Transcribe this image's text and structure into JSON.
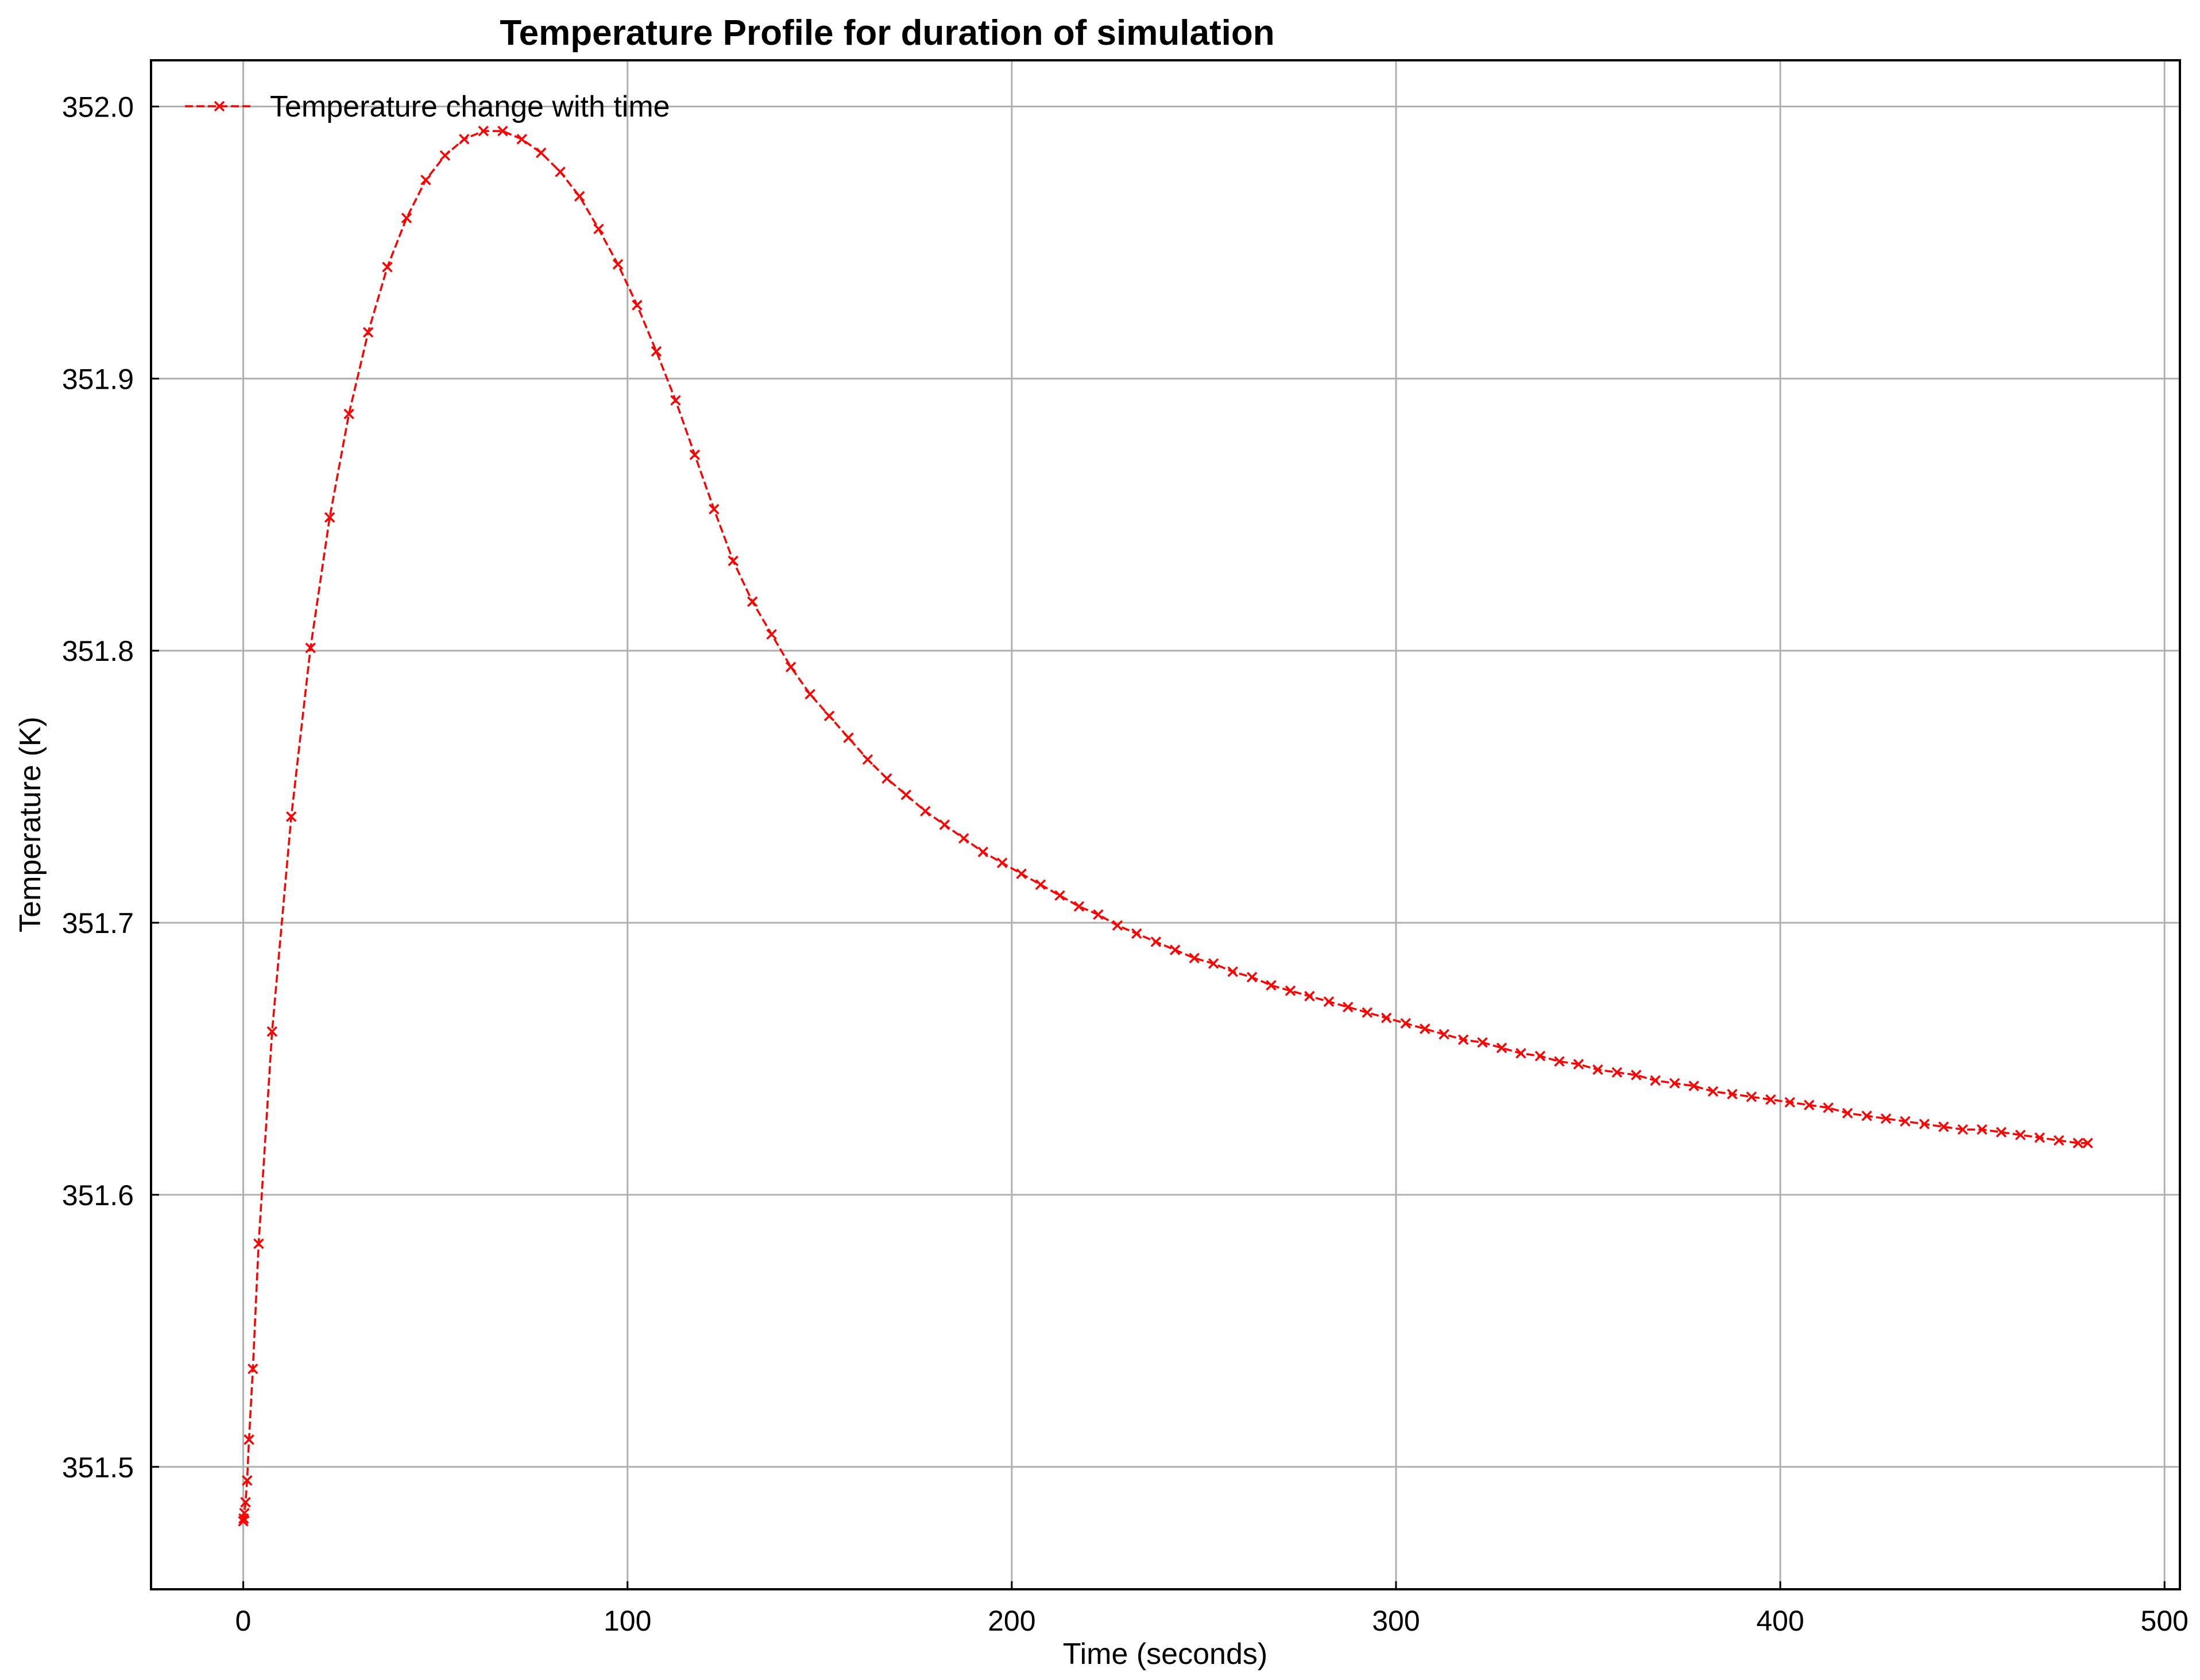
{
  "chart_data": {
    "type": "line",
    "title": "Temperature Profile for duration of simulation",
    "xlabel": "Time (seconds)",
    "ylabel": "Temperature (K)",
    "xlim": [
      -24,
      504
    ],
    "ylim": [
      351.455,
      352.017
    ],
    "xticks": [
      0,
      100,
      200,
      300,
      400,
      500
    ],
    "xtick_labels": [
      "0",
      "100",
      "200",
      "300",
      "400",
      "500"
    ],
    "yticks": [
      351.5,
      351.6,
      351.7,
      351.8,
      351.9,
      352.0
    ],
    "ytick_labels": [
      "351.5",
      "351.6",
      "351.7",
      "351.8",
      "351.9",
      "352.0"
    ],
    "grid": true,
    "legend_position": "upper-left",
    "series": [
      {
        "name": "Temperature change with time",
        "color": "#ff0000",
        "line_style": "dashed",
        "marker": "x",
        "x": [
          0,
          0.1,
          0.3,
          0.6,
          1,
          1.5,
          2.5,
          4,
          7.5,
          12.5,
          17.5,
          22.5,
          27.5,
          32.5,
          37.5,
          42.5,
          47.5,
          52.5,
          57.5,
          62.5,
          67.5,
          72.5,
          77.5,
          82.5,
          87.5,
          92.5,
          97.5,
          102.5,
          107.5,
          112.5,
          117.5,
          122.5,
          127.5,
          132.5,
          137.5,
          142.5,
          147.5,
          152.5,
          157.5,
          162.5,
          167.5,
          172.5,
          177.5,
          182.5,
          187.5,
          192.5,
          197.5,
          202.5,
          207.5,
          212.5,
          217.5,
          222.5,
          227.5,
          232.5,
          237.5,
          242.5,
          247.5,
          252.5,
          257.5,
          262.5,
          267.5,
          272.5,
          277.5,
          282.5,
          287.5,
          292.5,
          297.5,
          302.5,
          307.5,
          312.5,
          317.5,
          322.5,
          327.5,
          332.5,
          337.5,
          342.5,
          347.5,
          352.5,
          357.5,
          362.5,
          367.5,
          372.5,
          377.5,
          382.5,
          387.5,
          392.5,
          397.5,
          402.5,
          407.5,
          412.5,
          417.5,
          422.5,
          427.5,
          432.5,
          437.5,
          442.5,
          447.5,
          452.5,
          457.5,
          462.5,
          467.5,
          472.5,
          477.5,
          480
        ],
        "y": [
          351.48,
          351.481,
          351.483,
          351.487,
          351.495,
          351.51,
          351.536,
          351.582,
          351.66,
          351.739,
          351.801,
          351.849,
          351.887,
          351.917,
          351.941,
          351.959,
          351.973,
          351.982,
          351.988,
          351.991,
          351.991,
          351.988,
          351.983,
          351.976,
          351.967,
          351.955,
          351.942,
          351.927,
          351.91,
          351.892,
          351.872,
          351.852,
          351.833,
          351.818,
          351.806,
          351.794,
          351.784,
          351.776,
          351.768,
          351.76,
          351.753,
          351.747,
          351.741,
          351.736,
          351.731,
          351.726,
          351.722,
          351.718,
          351.714,
          351.71,
          351.706,
          351.703,
          351.699,
          351.696,
          351.693,
          351.69,
          351.687,
          351.685,
          351.682,
          351.68,
          351.677,
          351.675,
          351.673,
          351.671,
          351.669,
          351.667,
          351.665,
          351.663,
          351.661,
          351.659,
          351.657,
          351.656,
          351.654,
          351.652,
          351.651,
          351.649,
          351.648,
          351.646,
          351.645,
          351.644,
          351.642,
          351.641,
          351.64,
          351.638,
          351.637,
          351.636,
          351.635,
          351.634,
          351.633,
          351.632,
          351.63,
          351.629,
          351.628,
          351.627,
          351.626,
          351.625,
          351.624,
          351.624,
          351.623,
          351.622,
          351.621,
          351.62,
          351.619,
          351.619
        ]
      }
    ]
  }
}
